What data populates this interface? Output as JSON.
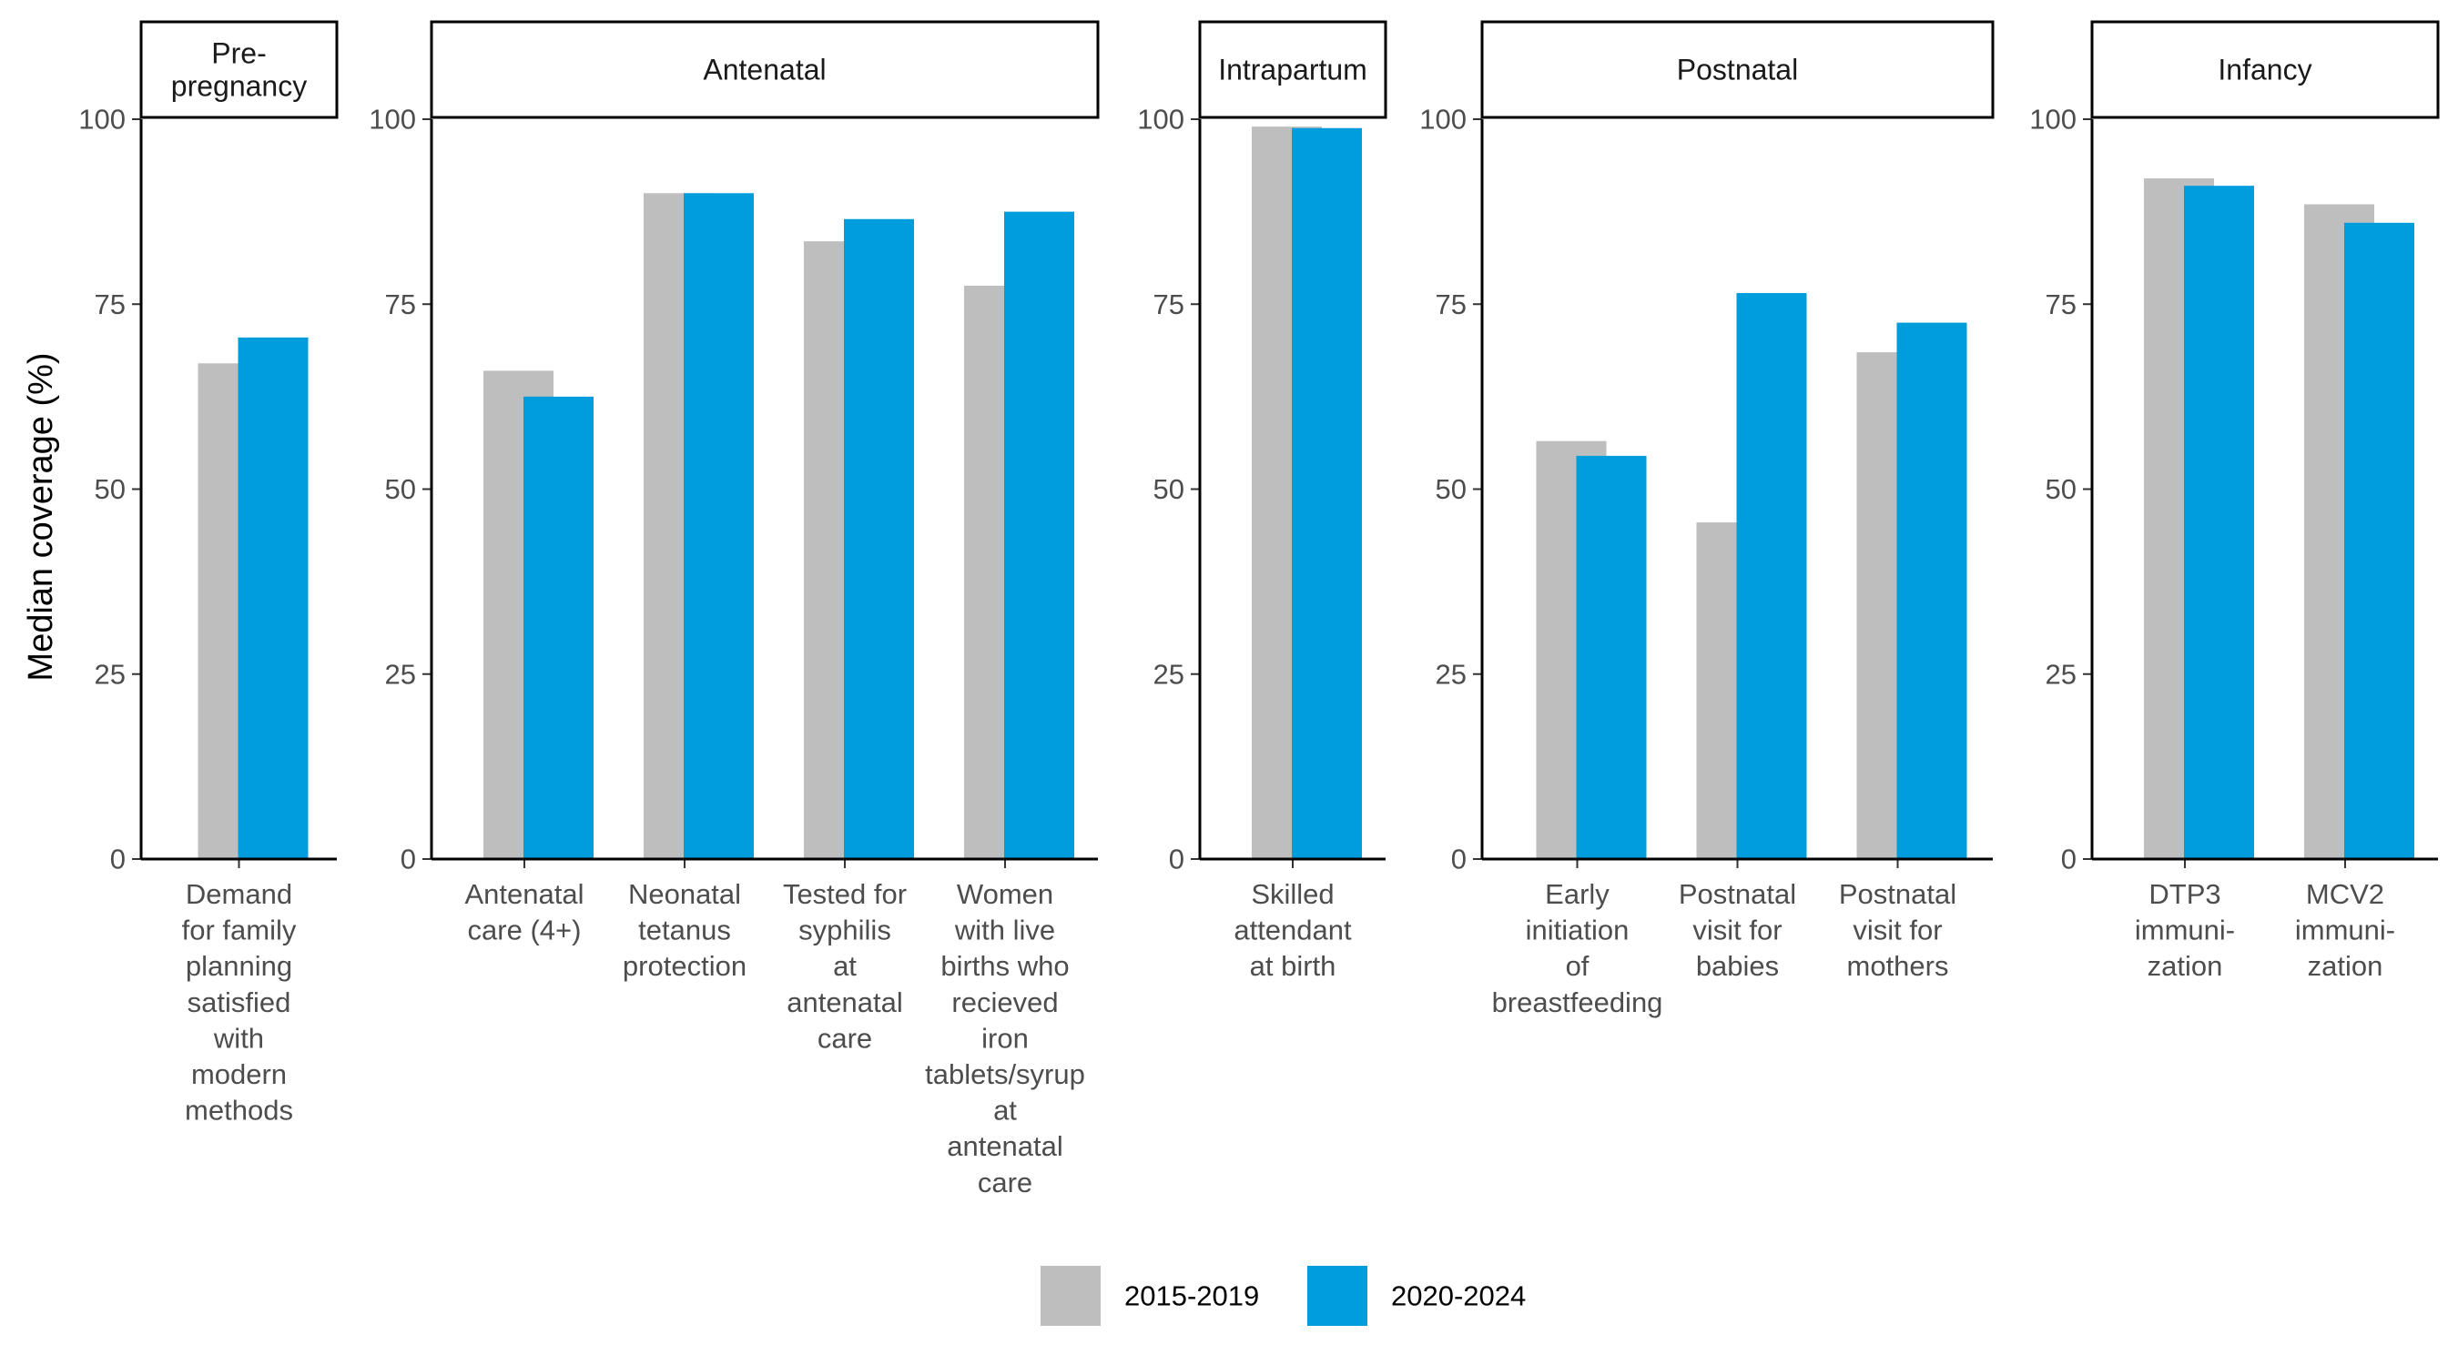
{
  "colors": {
    "period_1": "#bebebe",
    "period_2": "#009ddc"
  },
  "chart_data": {
    "type": "bar",
    "ylabel": "Median coverage (%)",
    "ylim": [
      0,
      100
    ],
    "yticks": [
      "0",
      "25",
      "50",
      "75",
      "100"
    ],
    "grid": false,
    "legend_position": "bottom",
    "legend": [
      "2015-2019",
      "2020-2024"
    ],
    "panels": [
      {
        "title": [
          "Pre-",
          "pregnancy"
        ],
        "categories": [
          {
            "lines": [
              "Demand",
              "for family",
              "planning",
              "satisfied",
              "with",
              "modern",
              "methods"
            ],
            "values": [
              67,
              70.5
            ]
          }
        ]
      },
      {
        "title": [
          "Antenatal"
        ],
        "categories": [
          {
            "lines": [
              "Antenatal",
              "care (4+)"
            ],
            "values": [
              66,
              62.5
            ]
          },
          {
            "lines": [
              "Neonatal",
              "tetanus",
              "protection"
            ],
            "values": [
              90,
              90
            ]
          },
          {
            "lines": [
              "Tested for",
              "syphilis",
              "at",
              "antenatal",
              "care"
            ],
            "values": [
              83.5,
              86.5
            ]
          },
          {
            "lines": [
              "Women",
              "with live",
              "births who",
              "recieved",
              "iron",
              "tablets/syrup",
              "at",
              "antenatal",
              "care"
            ],
            "values": [
              77.5,
              87.5
            ]
          }
        ]
      },
      {
        "title": [
          "Intrapartum"
        ],
        "categories": [
          {
            "lines": [
              "Skilled",
              "attendant",
              "at birth"
            ],
            "values": [
              99,
              98.8
            ]
          }
        ]
      },
      {
        "title": [
          "Postnatal"
        ],
        "categories": [
          {
            "lines": [
              "Early",
              "initiation",
              "of",
              "breastfeeding"
            ],
            "values": [
              56.5,
              54.5
            ]
          },
          {
            "lines": [
              "Postnatal",
              "visit for",
              "babies"
            ],
            "values": [
              45.5,
              76.5
            ]
          },
          {
            "lines": [
              "Postnatal",
              "visit for",
              "mothers"
            ],
            "values": [
              68.5,
              72.5
            ]
          }
        ]
      },
      {
        "title": [
          "Infancy"
        ],
        "categories": [
          {
            "lines": [
              "DTP3",
              "immuni-",
              "zation"
            ],
            "values": [
              92,
              91
            ]
          },
          {
            "lines": [
              "MCV2",
              "immuni-",
              "zation"
            ],
            "values": [
              88.5,
              86
            ]
          }
        ]
      }
    ]
  }
}
